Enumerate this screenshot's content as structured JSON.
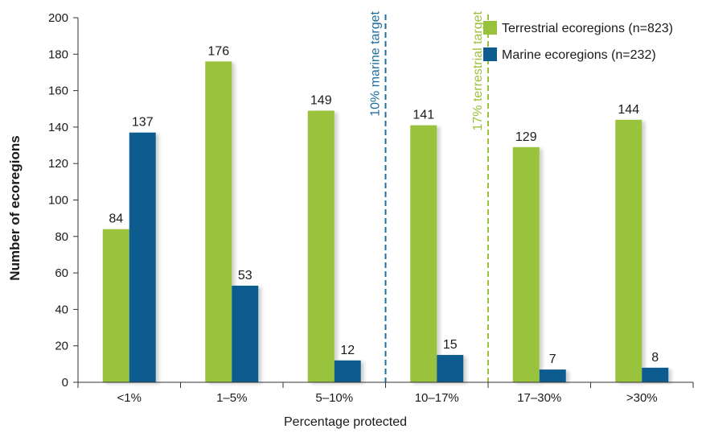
{
  "chart_data": {
    "type": "bar",
    "categories": [
      "<1%",
      "1–5%",
      "5–10%",
      "10–17%",
      "17–30%",
      ">30%"
    ],
    "series": [
      {
        "name": "Terrestrial ecoregions (n=823)",
        "color": "#99c23c",
        "values": [
          84,
          176,
          149,
          141,
          129,
          144
        ]
      },
      {
        "name": "Marine ecoregions (n=232)",
        "color": "#0e5c8f",
        "values": [
          137,
          53,
          12,
          15,
          7,
          8
        ]
      }
    ],
    "xlabel": "Percentage protected",
    "ylabel": "Number of ecoregions",
    "ylim": [
      0,
      200
    ],
    "yticks": [
      0,
      20,
      40,
      60,
      80,
      100,
      120,
      140,
      160,
      180,
      200
    ],
    "legend_position": "top-right",
    "grid": false,
    "data_labels": true,
    "reference_lines": [
      {
        "label": "10% marine target",
        "between": [
          "5–10%",
          "10–17%"
        ],
        "color": "#1e6e9e",
        "style": "dashed"
      },
      {
        "label": "17% terrestrial target",
        "between": [
          "10–17%",
          "17–30%"
        ],
        "color": "#99c23c",
        "style": "dashed"
      }
    ]
  }
}
